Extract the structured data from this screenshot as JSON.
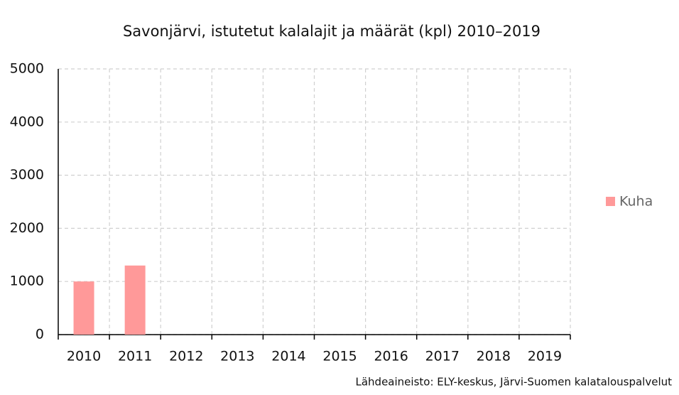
{
  "chart_data": {
    "type": "bar",
    "title": "Savonjärvi, istutetut kalalajit ja määrät (kpl) 2010–2019",
    "source": "Lähdeaineisto: ELY-keskus, Järvi-Suomen kalatalouspalvelut",
    "categories": [
      "2010",
      "2011",
      "2012",
      "2013",
      "2014",
      "2015",
      "2016",
      "2017",
      "2018",
      "2019"
    ],
    "series": [
      {
        "name": "Kuha",
        "color": "#ff9999",
        "values": [
          1000,
          1300,
          0,
          0,
          0,
          0,
          0,
          0,
          0,
          0
        ]
      }
    ],
    "ylim": [
      0,
      5000
    ],
    "yticks": [
      0,
      1000,
      2000,
      3000,
      4000,
      5000
    ],
    "grid": true,
    "legend": "right"
  }
}
